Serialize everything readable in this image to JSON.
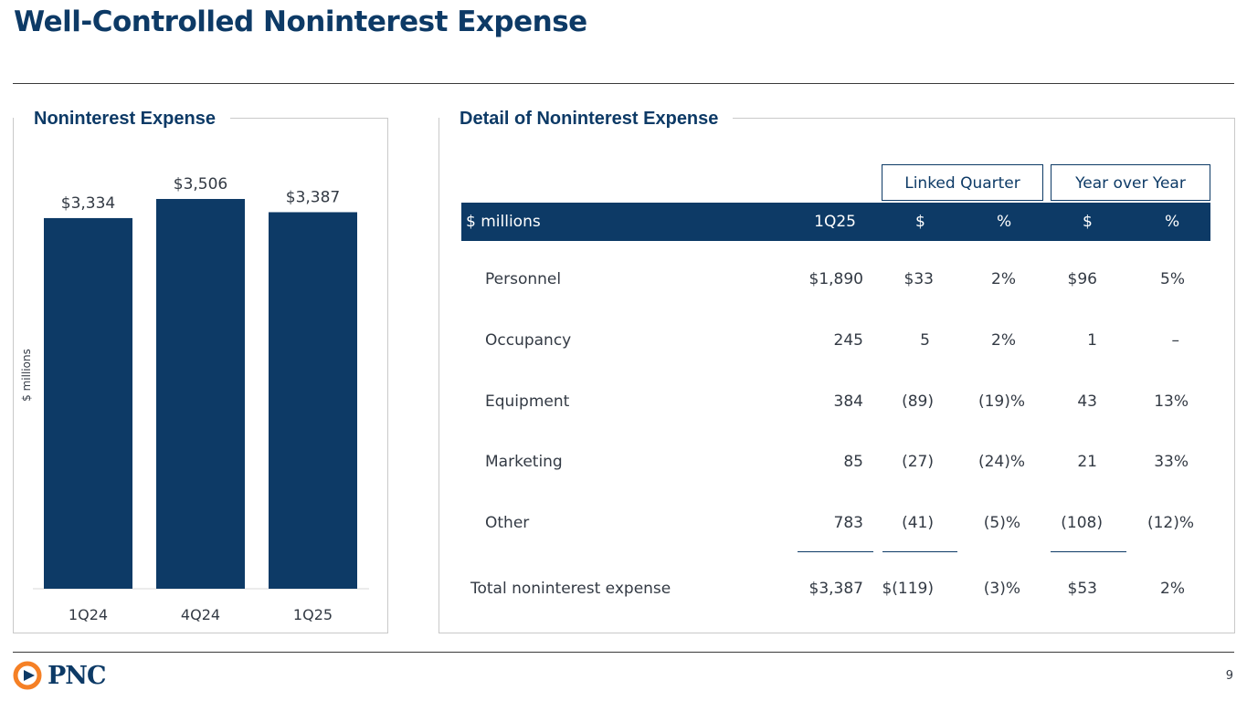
{
  "page": {
    "title": "Well-Controlled Noninterest Expense",
    "page_number": "9"
  },
  "left_panel": {
    "title": "Noninterest Expense"
  },
  "right_panel": {
    "title": "Detail of Noninterest Expense"
  },
  "chart_data": {
    "type": "bar",
    "title": "Noninterest Expense",
    "ylabel": "$ millions",
    "categories": [
      "1Q24",
      "4Q24",
      "1Q25"
    ],
    "values": [
      3334,
      3506,
      3387
    ],
    "data_labels": [
      "$3,334",
      "$3,506",
      "$3,387"
    ],
    "ylim": [
      0,
      3900
    ],
    "grid": false,
    "colors": {
      "bar": "#0d3a66"
    }
  },
  "table": {
    "group_headers": [
      "Linked Quarter",
      "Year over Year"
    ],
    "columns": [
      "$ millions",
      "1Q25",
      "$",
      "%",
      "$",
      "%"
    ],
    "rows": [
      {
        "label": "Personnel",
        "values": [
          "$1,890",
          "$33",
          "2%",
          "$96",
          "5%"
        ]
      },
      {
        "label": "Occupancy",
        "values": [
          "245",
          "5",
          "2%",
          "1",
          "–"
        ]
      },
      {
        "label": "Equipment",
        "values": [
          "384",
          "(89)",
          "(19)%",
          "43",
          "13%"
        ]
      },
      {
        "label": "Marketing",
        "values": [
          "85",
          "(27)",
          "(24)%",
          "21",
          "33%"
        ]
      },
      {
        "label": "Other",
        "values": [
          "783",
          "(41)",
          "(5)%",
          "(108)",
          "(12)%"
        ]
      }
    ],
    "total": {
      "label": "Total noninterest expense",
      "values": [
        "$3,387",
        "$(119)",
        "(3)%",
        "$53",
        "2%"
      ]
    }
  },
  "footer": {
    "logo_text": "PNC"
  },
  "colors": {
    "brand": "#0d3a66",
    "accent": "#f58025"
  }
}
